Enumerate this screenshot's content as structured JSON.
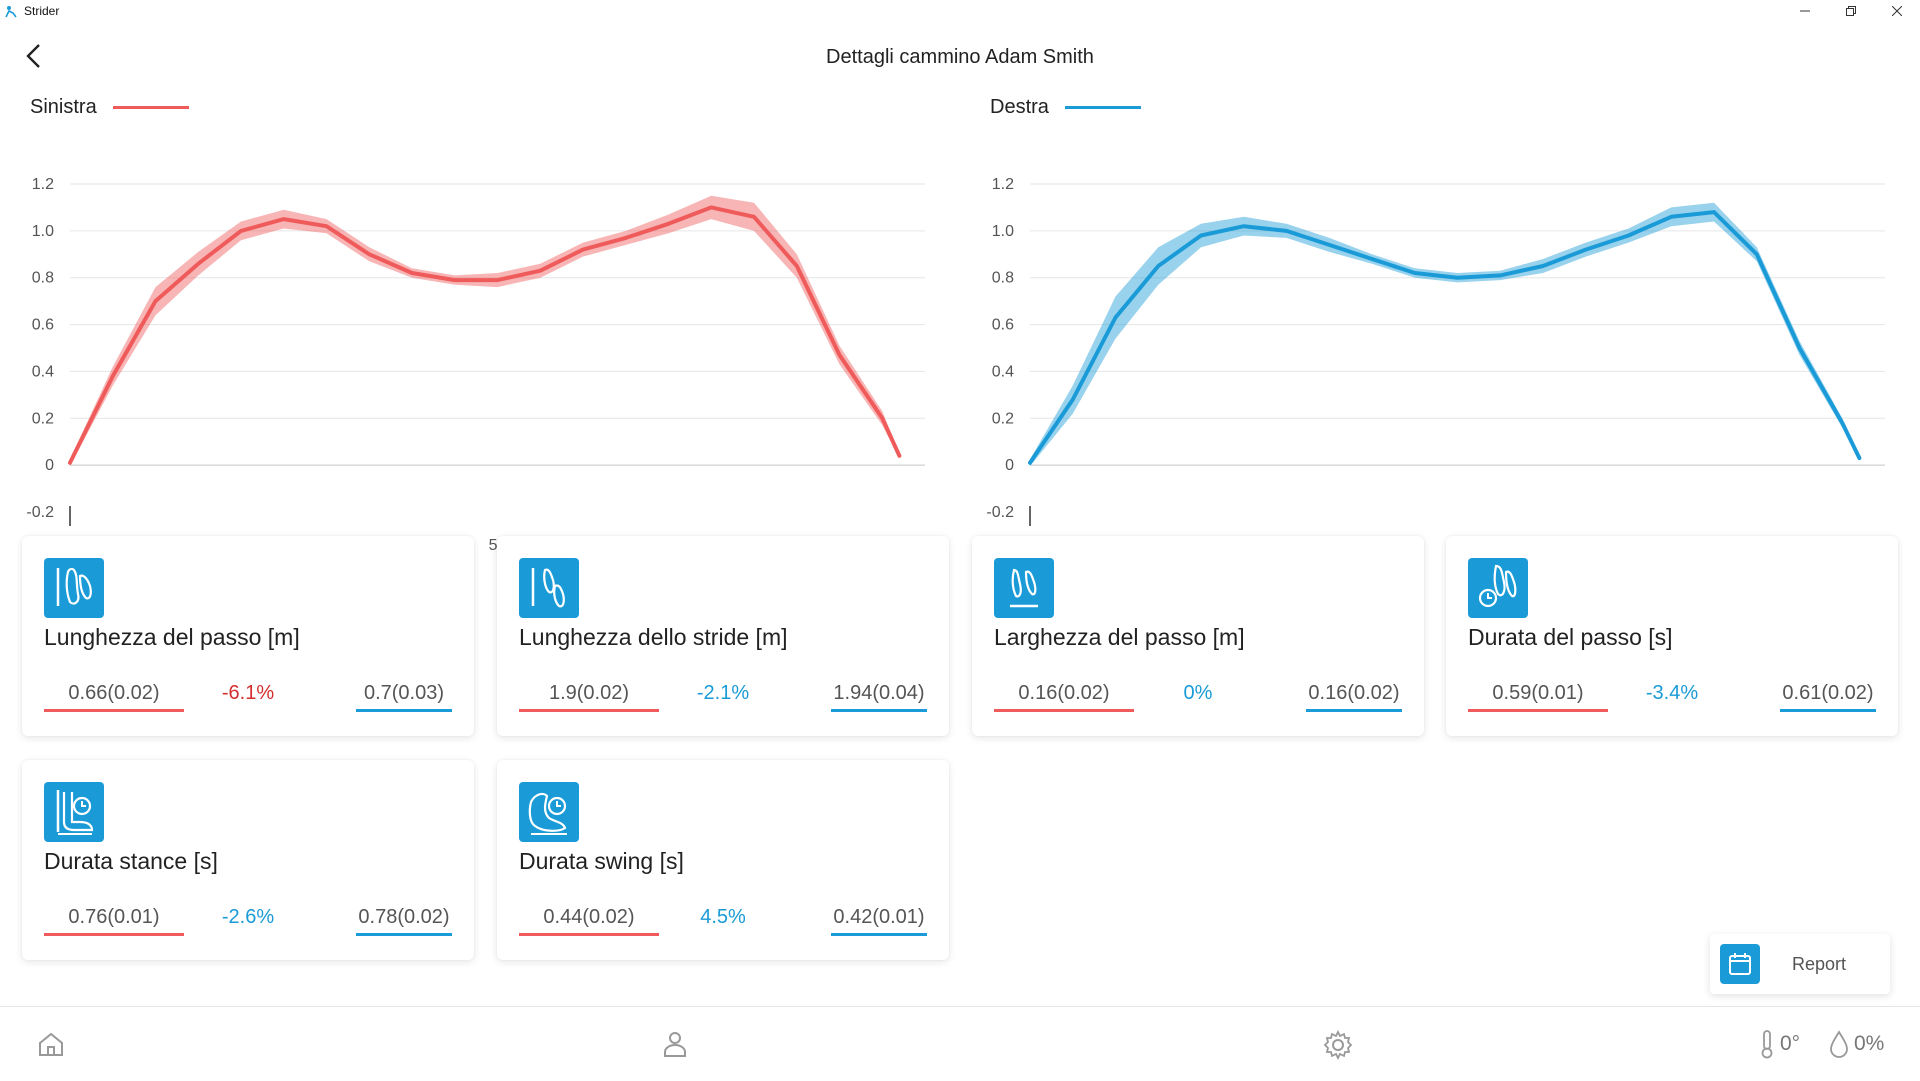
{
  "window": {
    "title": "Strider"
  },
  "header": {
    "title": "Dettagli cammino Adam Smith"
  },
  "legend": {
    "left": {
      "label": "Sinistra",
      "color": "#ef5b5b"
    },
    "right": {
      "label": "Destra",
      "color": "#1a9bd7"
    }
  },
  "chart_data": [
    {
      "type": "line",
      "series_name": "Sinistra",
      "color": "#ef5b5b",
      "xlim": [
        0,
        100
      ],
      "ylim": [
        -0.2,
        1.2
      ],
      "xticks": [
        "0",
        "10",
        "20",
        "30",
        "40",
        "50",
        "60",
        "70",
        "80",
        "90",
        "100"
      ],
      "yticks": [
        "1.2",
        "1.0",
        "0.8",
        "0.6",
        "0.4",
        "0.2",
        "0",
        "-0.2"
      ],
      "x": [
        0,
        5,
        10,
        15,
        20,
        25,
        30,
        35,
        40,
        45,
        50,
        55,
        60,
        65,
        70,
        75,
        80,
        85,
        90,
        95,
        97
      ],
      "y": [
        0.01,
        0.38,
        0.7,
        0.86,
        1.0,
        1.05,
        1.02,
        0.9,
        0.82,
        0.79,
        0.79,
        0.83,
        0.92,
        0.97,
        1.03,
        1.1,
        1.06,
        0.85,
        0.47,
        0.2,
        0.04
      ],
      "band": [
        0.015,
        0.04,
        0.06,
        0.05,
        0.04,
        0.04,
        0.03,
        0.03,
        0.02,
        0.02,
        0.03,
        0.03,
        0.03,
        0.03,
        0.04,
        0.05,
        0.06,
        0.05,
        0.04,
        0.03,
        0.01
      ],
      "grid": true
    },
    {
      "type": "line",
      "series_name": "Destra",
      "color": "#1a9bd7",
      "xlim": [
        0,
        100
      ],
      "ylim": [
        -0.2,
        1.2
      ],
      "xticks": [
        "0",
        "10",
        "20",
        "30",
        "40",
        "50",
        "60",
        "70",
        "80",
        "90",
        "100"
      ],
      "yticks": [
        "1.2",
        "1.0",
        "0.8",
        "0.6",
        "0.4",
        "0.2",
        "0",
        "-0.2"
      ],
      "x": [
        0,
        5,
        10,
        15,
        20,
        25,
        30,
        35,
        40,
        45,
        50,
        55,
        60,
        65,
        70,
        75,
        80,
        85,
        90,
        95,
        97
      ],
      "y": [
        0.01,
        0.28,
        0.63,
        0.85,
        0.98,
        1.02,
        1.0,
        0.94,
        0.88,
        0.82,
        0.8,
        0.81,
        0.85,
        0.92,
        0.98,
        1.06,
        1.08,
        0.9,
        0.5,
        0.18,
        0.03
      ],
      "band": [
        0.015,
        0.06,
        0.09,
        0.08,
        0.05,
        0.04,
        0.03,
        0.03,
        0.02,
        0.02,
        0.02,
        0.02,
        0.03,
        0.03,
        0.03,
        0.04,
        0.04,
        0.03,
        0.03,
        0.02,
        0.01
      ],
      "grid": true
    }
  ],
  "cards": [
    {
      "icon": "footprint-icon",
      "title": "Lunghezza del passo [m]",
      "left_value": "0.66(0.02)",
      "delta": "-6.1%",
      "delta_color": "#d32f2f",
      "right_value": "0.7(0.03)"
    },
    {
      "icon": "stride-icon",
      "title": "Lunghezza dello stride [m]",
      "left_value": "1.9(0.02)",
      "delta": "-2.1%",
      "delta_color": "#1a9bd7",
      "right_value": "1.94(0.04)"
    },
    {
      "icon": "step-width-icon",
      "title": "Larghezza del passo [m]",
      "left_value": "0.16(0.02)",
      "delta": "0%",
      "delta_color": "#1a9bd7",
      "right_value": "0.16(0.02)"
    },
    {
      "icon": "step-time-icon",
      "title": "Durata del passo [s]",
      "left_value": "0.59(0.01)",
      "delta": "-3.4%",
      "delta_color": "#1a9bd7",
      "right_value": "0.61(0.02)"
    },
    {
      "icon": "stance-time-icon",
      "title": "Durata stance [s]",
      "left_value": "0.76(0.01)",
      "delta": "-2.6%",
      "delta_color": "#1a9bd7",
      "right_value": "0.78(0.02)"
    },
    {
      "icon": "swing-time-icon",
      "title": "Durata swing [s]",
      "left_value": "0.44(0.02)",
      "delta": "4.5%",
      "delta_color": "#1a9bd7",
      "right_value": "0.42(0.01)"
    }
  ],
  "report_button": {
    "label": "Report",
    "icon": "calendar-icon"
  },
  "status": {
    "temperature": "0°",
    "humidity": "0%"
  },
  "nav": {
    "home_icon": "home-icon",
    "user_icon": "user-icon",
    "settings_icon": "gear-icon"
  }
}
